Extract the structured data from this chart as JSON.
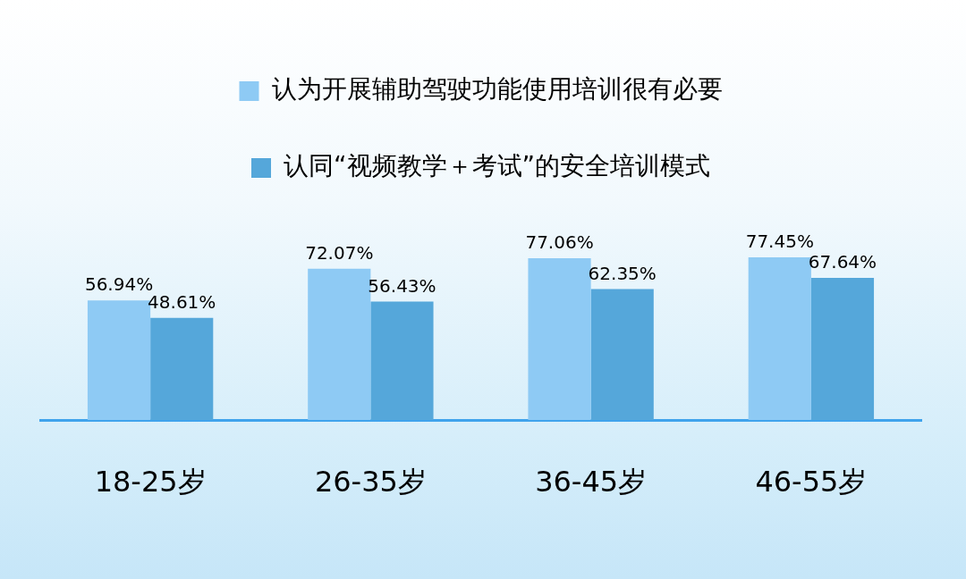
{
  "chart_data": {
    "type": "bar",
    "categories": [
      "18-25岁",
      "26-35岁",
      "36-45岁",
      "46-55岁"
    ],
    "series": [
      {
        "name": "认为开展辅助驾驶功能使用培训很有必要",
        "color": "#8ecaf4",
        "values": [
          56.94,
          72.07,
          77.06,
          77.45
        ],
        "value_labels": [
          "56.94%",
          "72.07%",
          "77.06%",
          "77.45%"
        ]
      },
      {
        "name": "认同“视频教学＋考试”的安全培训模式",
        "color": "#55a7da",
        "values": [
          48.61,
          56.43,
          62.35,
          67.64
        ],
        "value_labels": [
          "48.61%",
          "56.43%",
          "62.35%",
          "67.64%"
        ]
      }
    ],
    "legend": "top",
    "tick_labels": "x"
  }
}
